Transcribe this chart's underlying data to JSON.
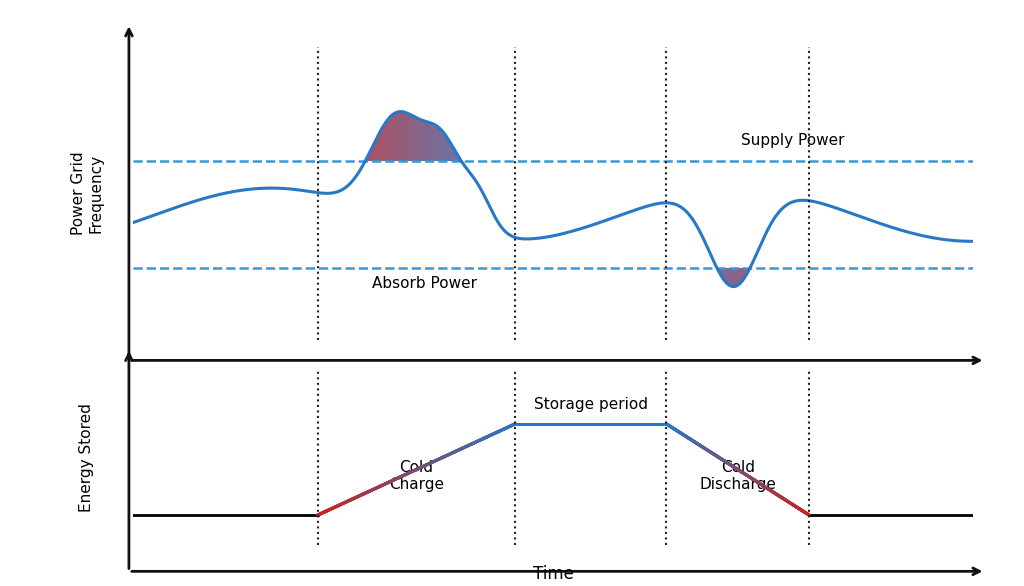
{
  "fig_width": 10.24,
  "fig_height": 5.86,
  "dpi": 100,
  "bg_color": "#ffffff",
  "upper_threshold": 0.62,
  "lower_threshold": 0.22,
  "baseline_freq": 0.42,
  "t1": 0.22,
  "t2": 0.455,
  "t3": 0.635,
  "t4": 0.805,
  "line_color": "#2878c8",
  "line_width": 2.2,
  "dashed_color": "#3399dd",
  "dashed_lw": 1.8,
  "absorb_label": "Absorb Power",
  "supply_label": "Supply Power",
  "storage_label": "Storage period",
  "cold_charge_label": "Cold\nCharge",
  "cold_discharge_label": "Cold\nDischarge",
  "top_ylabel": "Power Grid\nFrequency",
  "bottom_ylabel": "Energy Stored",
  "xlabel": "Time",
  "arrow_color": "#111111",
  "axis_lw": 2.0,
  "dotted_lw": 1.5,
  "dotted_color": "#222222",
  "gradient_blue": "#2878c8",
  "gradient_red": "#cc2222",
  "energy_line_color": "#2878c8",
  "font_size_label": 11,
  "font_size_axis_label": 11
}
